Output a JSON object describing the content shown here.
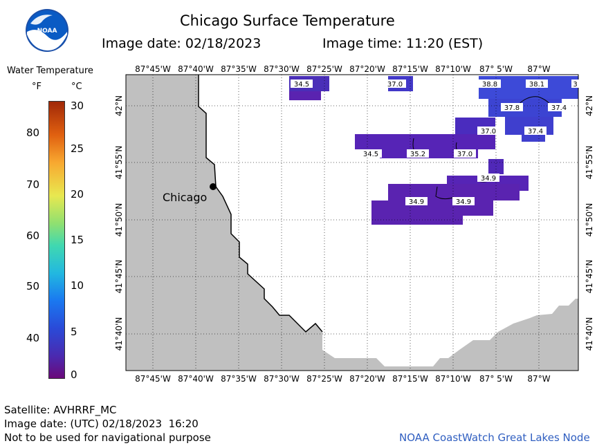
{
  "header": {
    "title": "Chicago Surface Temperature",
    "image_date": "Image date: 02/18/2023",
    "image_time": "Image time: 11:20 (EST)",
    "logo_text": "NOAA"
  },
  "legend": {
    "title": "Water Temperature",
    "unit_f": "°F",
    "unit_c": "°C",
    "f_ticks": [
      "80",
      "70",
      "60",
      "50",
      "40"
    ],
    "c_ticks": [
      "30",
      "25",
      "20",
      "15",
      "10",
      "5",
      "0"
    ]
  },
  "map": {
    "lon_labels": [
      "87°45'W",
      "87°40'W",
      "87°35'W",
      "87°30'W",
      "87°25'W",
      "87°20'W",
      "87°15'W",
      "87°10'W",
      "87° 5'W",
      "87°W"
    ],
    "lat_labels": [
      "42°N",
      "41°55'N",
      "41°50'N",
      "41°45'N",
      "41°40'N"
    ],
    "city_label": "Chicago",
    "temperature_labels": [
      "34.5",
      "37.0",
      "38.8",
      "38.1",
      "3",
      "37.8",
      "37.4",
      "37.0",
      "37.4",
      "34.5",
      "35.2",
      "37.0",
      "34.9",
      "34.9",
      "34.9"
    ],
    "colors": {
      "land": "#c0c0c0",
      "water": "#ffffff",
      "purple": "#5a23b0",
      "blue": "#3d3ed8"
    }
  },
  "footer": {
    "satellite": "Satellite: AVHRRF_MC",
    "image_date_utc": "Image date: (UTC) 02/18/2023  16:20",
    "disclaimer": "Not to be used for navigational purpose",
    "credit": "NOAA CoastWatch Great Lakes Node"
  }
}
